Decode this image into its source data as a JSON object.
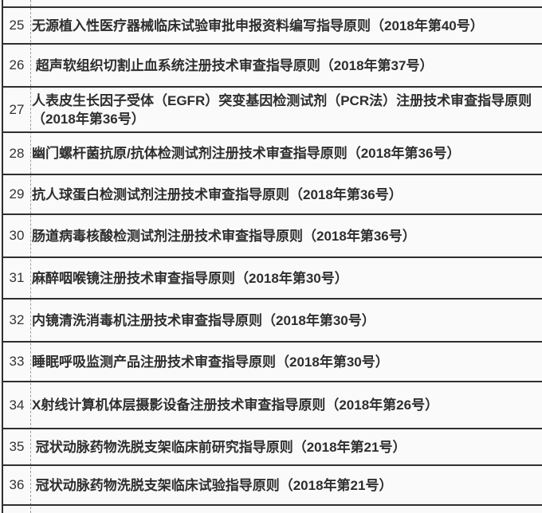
{
  "table": {
    "description_rows": [
      {
        "num": "25",
        "title": "无源植入性医疗器械临床试验审批申报资料编写指导原则（2018年第40号）"
      },
      {
        "num": "26",
        "title": " 超声软组织切割止血系统注册技术审查指导原则（2018年第37号）"
      },
      {
        "num": "27",
        "title": "人表皮生长因子受体（EGFR）突变基因检测试剂（PCR法）注册技术审查指导原则（2018年第36号）"
      },
      {
        "num": "28",
        "title": "幽门螺杆菌抗原/抗体检测试剂注册技术审查指导原则（2018年第36号）"
      },
      {
        "num": "29",
        "title": "抗人球蛋白检测试剂注册技术审查指导原则（2018年第36号）"
      },
      {
        "num": "30",
        "title": "肠道病毒核酸检测试剂注册技术审查指导原则（2018年第36号）"
      },
      {
        "num": "31",
        "title": "麻醉咽喉镜注册技术审查指导原则（2018年第30号）"
      },
      {
        "num": "32",
        "title": "内镜清洗消毒机注册技术审查指导原则（2018年第30号）"
      },
      {
        "num": "33",
        "title": "睡眠呼吸监测产品注册技术审查指导原则（2018年第30号）"
      },
      {
        "num": "34",
        "title": "X射线计算机体层摄影设备注册技术审查指导原则（2018年第26号）"
      },
      {
        "num": "35",
        "title": " 冠状动脉药物洗脱支架临床前研究指导原则（2018年第21号）"
      },
      {
        "num": "36",
        "title": " 冠状动脉药物洗脱支架临床试验指导原则（2018年第21号）"
      }
    ],
    "colors": {
      "background": "#fafafa",
      "grid_line": "#2f2f2f",
      "dashed_divider": "#9c9c9c",
      "text": "#2e2e2e"
    }
  }
}
